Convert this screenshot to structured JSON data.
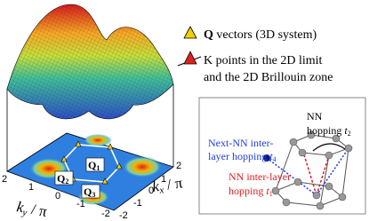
{
  "legend": [
    {
      "symbol": "Q",
      "text": " vectors (3D system)"
    },
    {
      "lines": [
        "K points in the 2D limit",
        "and the 2D Brillouin zone"
      ]
    }
  ],
  "plot": {
    "q_labels": [
      {
        "letter": "Q",
        "sub": "1"
      },
      {
        "letter": "Q",
        "sub": "2"
      },
      {
        "letter": "Q",
        "sub": "3"
      }
    ],
    "x_axis": {
      "letter": "k",
      "sub": "x",
      "unit": " / π",
      "ticks": [
        2,
        1,
        0,
        -1,
        -2
      ]
    },
    "y_axis": {
      "letter": "k",
      "sub": "y",
      "unit": " / π",
      "ticks": [
        2,
        1,
        0,
        -1,
        -2
      ]
    }
  },
  "inset": {
    "nn": {
      "line1": "NN",
      "line2": "hopping ",
      "letter": "t",
      "sub": "2"
    },
    "next_nn": {
      "line1": "Next-NN inter-",
      "line2": "layer hopping ",
      "letter": "t",
      "sub": "4"
    },
    "nn_inter": {
      "line1": "NN inter-layer",
      "line2": "hopping ",
      "letter": "t",
      "sub": "1"
    }
  }
}
